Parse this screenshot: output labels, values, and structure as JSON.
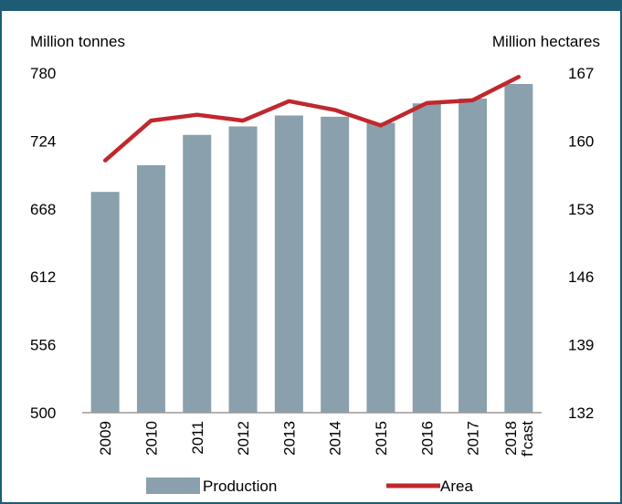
{
  "chart_data": {
    "type": "bar",
    "categories": [
      "2009",
      "2010",
      "2011",
      "2012",
      "2013",
      "2014",
      "2015",
      "2016",
      "2017",
      "2018 f'cast"
    ],
    "category_lines": [
      [
        "2009"
      ],
      [
        "2010"
      ],
      [
        "2011"
      ],
      [
        "2012"
      ],
      [
        "2013"
      ],
      [
        "2014"
      ],
      [
        "2015"
      ],
      [
        "2016"
      ],
      [
        "2017"
      ],
      [
        "2018",
        "f'cast"
      ]
    ],
    "series": [
      {
        "name": "Production",
        "type": "bar",
        "axis": "left",
        "color": "#8aa0ac",
        "values": [
          682,
          704,
          729,
          736,
          745,
          744,
          739,
          755,
          759,
          771
        ]
      },
      {
        "name": "Area",
        "type": "line",
        "axis": "right",
        "color": "#c0282d",
        "values": [
          158.0,
          162.1,
          162.7,
          162.1,
          164.1,
          163.2,
          161.6,
          163.9,
          164.2,
          166.6
        ]
      }
    ],
    "left_axis": {
      "label": "Million tonnes",
      "range": [
        500,
        780
      ],
      "ticks": [
        "780",
        "724",
        "668",
        "612",
        "556",
        "500"
      ]
    },
    "right_axis": {
      "label": "Million hectares",
      "range": [
        132,
        167
      ],
      "ticks": [
        "167",
        "160",
        "153",
        "146",
        "139",
        "132"
      ]
    },
    "grid": false,
    "legend": {
      "position": "bottom",
      "entries": [
        "Production",
        "Area"
      ]
    }
  }
}
